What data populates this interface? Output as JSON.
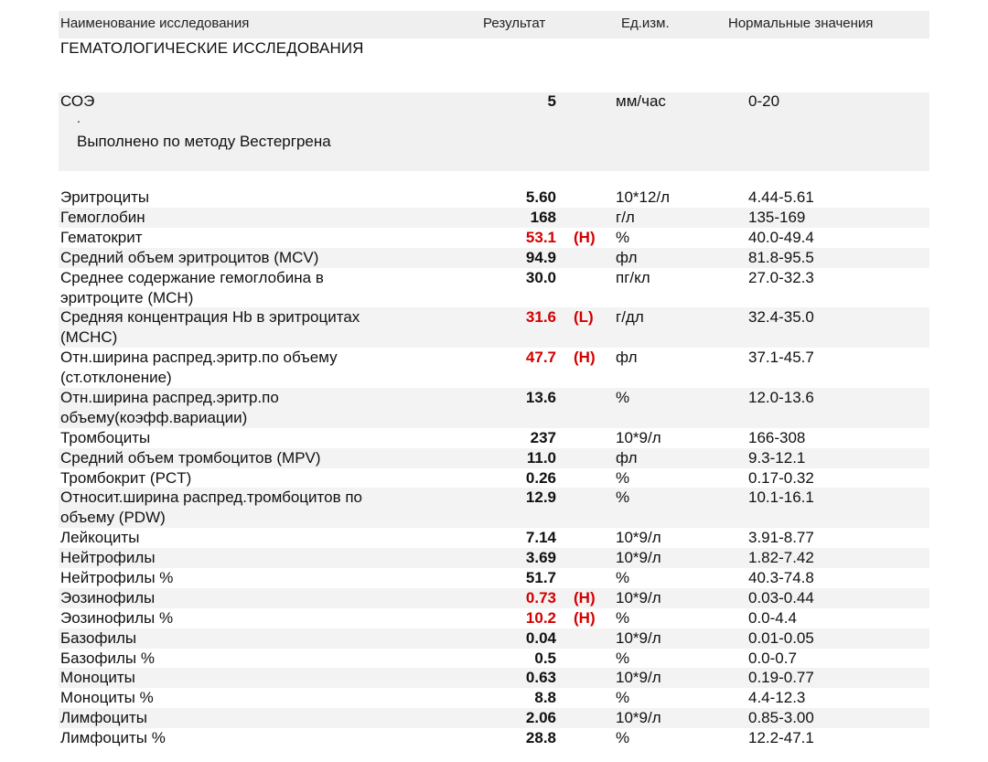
{
  "header": {
    "name": "Наименование исследования",
    "result": "Результат",
    "unit": "Ед.изм.",
    "norm": "Нормальные значения"
  },
  "section_title": "ГЕМАТОЛОГИЧЕСКИЕ ИССЛЕДОВАНИЯ",
  "soe": {
    "name": "СОЭ",
    "value": "5",
    "unit": "мм/час",
    "norm": "0-20",
    "dot": ".",
    "method": "Выполнено по методу Вестергрена"
  },
  "rows": [
    {
      "name": [
        "Эритроциты"
      ],
      "value": "5.60",
      "flag": "",
      "unit": "10*12/л",
      "norm": "4.44-5.61",
      "shaded": false
    },
    {
      "name": [
        "Гемоглобин"
      ],
      "value": "168",
      "flag": "",
      "unit": "г/л",
      "norm": "135-169",
      "shaded": true
    },
    {
      "name": [
        "Гематокрит"
      ],
      "value": "53.1",
      "flag": "(H)",
      "unit": "%",
      "norm": "40.0-49.4",
      "shaded": false
    },
    {
      "name": [
        "Средний объем эритроцитов (MCV)"
      ],
      "value": "94.9",
      "flag": "",
      "unit": "фл",
      "norm": "81.8-95.5",
      "shaded": true
    },
    {
      "name": [
        "Среднее содержание гемоглобина в",
        "эритроците (MCH)"
      ],
      "value": "30.0",
      "flag": "",
      "unit": "пг/кл",
      "norm": "27.0-32.3",
      "shaded": false
    },
    {
      "name": [
        "Средняя концентрация Hb в эритроцитах",
        "(MCHC)"
      ],
      "value": "31.6",
      "flag": "(L)",
      "unit": "г/дл",
      "norm": "32.4-35.0",
      "shaded": true
    },
    {
      "name": [
        "Отн.ширина распред.эритр.по объему",
        "(ст.отклонение)"
      ],
      "value": "47.7",
      "flag": "(H)",
      "unit": "фл",
      "norm": "37.1-45.7",
      "shaded": false
    },
    {
      "name": [
        "Отн.ширина распред.эритр.по",
        "объему(коэфф.вариации)"
      ],
      "value": "13.6",
      "flag": "",
      "unit": "%",
      "norm": "12.0-13.6",
      "shaded": true
    },
    {
      "name": [
        "Тромбоциты"
      ],
      "value": "237",
      "flag": "",
      "unit": "10*9/л",
      "norm": "166-308",
      "shaded": false
    },
    {
      "name": [
        "Средний объем тромбоцитов (MPV)"
      ],
      "value": "11.0",
      "flag": "",
      "unit": "фл",
      "norm": "9.3-12.1",
      "shaded": true
    },
    {
      "name": [
        "Тромбокрит (PCT)"
      ],
      "value": "0.26",
      "flag": "",
      "unit": "%",
      "norm": "0.17-0.32",
      "shaded": false
    },
    {
      "name": [
        "Относит.ширина распред.тромбоцитов по",
        "объему (PDW)"
      ],
      "value": "12.9",
      "flag": "",
      "unit": "%",
      "norm": "10.1-16.1",
      "shaded": true
    },
    {
      "name": [
        "Лейкоциты"
      ],
      "value": "7.14",
      "flag": "",
      "unit": "10*9/л",
      "norm": "3.91-8.77",
      "shaded": false
    },
    {
      "name": [
        "Нейтрофилы"
      ],
      "value": "3.69",
      "flag": "",
      "unit": "10*9/л",
      "norm": "1.82-7.42",
      "shaded": true
    },
    {
      "name": [
        "Нейтрофилы %"
      ],
      "value": "51.7",
      "flag": "",
      "unit": "%",
      "norm": "40.3-74.8",
      "shaded": false
    },
    {
      "name": [
        "Эозинофилы"
      ],
      "value": "0.73",
      "flag": "(H)",
      "unit": "10*9/л",
      "norm": "0.03-0.44",
      "shaded": true
    },
    {
      "name": [
        "Эозинофилы %"
      ],
      "value": "10.2",
      "flag": "(H)",
      "unit": "%",
      "norm": "0.0-4.4",
      "shaded": false
    },
    {
      "name": [
        "Базофилы"
      ],
      "value": "0.04",
      "flag": "",
      "unit": "10*9/л",
      "norm": "0.01-0.05",
      "shaded": true
    },
    {
      "name": [
        "Базофилы %"
      ],
      "value": "0.5",
      "flag": "",
      "unit": "%",
      "norm": "0.0-0.7",
      "shaded": false
    },
    {
      "name": [
        "Моноциты"
      ],
      "value": "0.63",
      "flag": "",
      "unit": "10*9/л",
      "norm": "0.19-0.77",
      "shaded": true
    },
    {
      "name": [
        "Моноциты %"
      ],
      "value": "8.8",
      "flag": "",
      "unit": "%",
      "norm": "4.4-12.3",
      "shaded": false
    },
    {
      "name": [
        "Лимфоциты"
      ],
      "value": "2.06",
      "flag": "",
      "unit": "10*9/л",
      "norm": "0.85-3.00",
      "shaded": true
    },
    {
      "name": [
        "Лимфоциты %"
      ],
      "value": "28.8",
      "flag": "",
      "unit": "%",
      "norm": "12.2-47.1",
      "shaded": false
    }
  ],
  "colors": {
    "abnormal": "#d20000",
    "shade": "#f3f3f3",
    "header_bg": "#efefef"
  }
}
